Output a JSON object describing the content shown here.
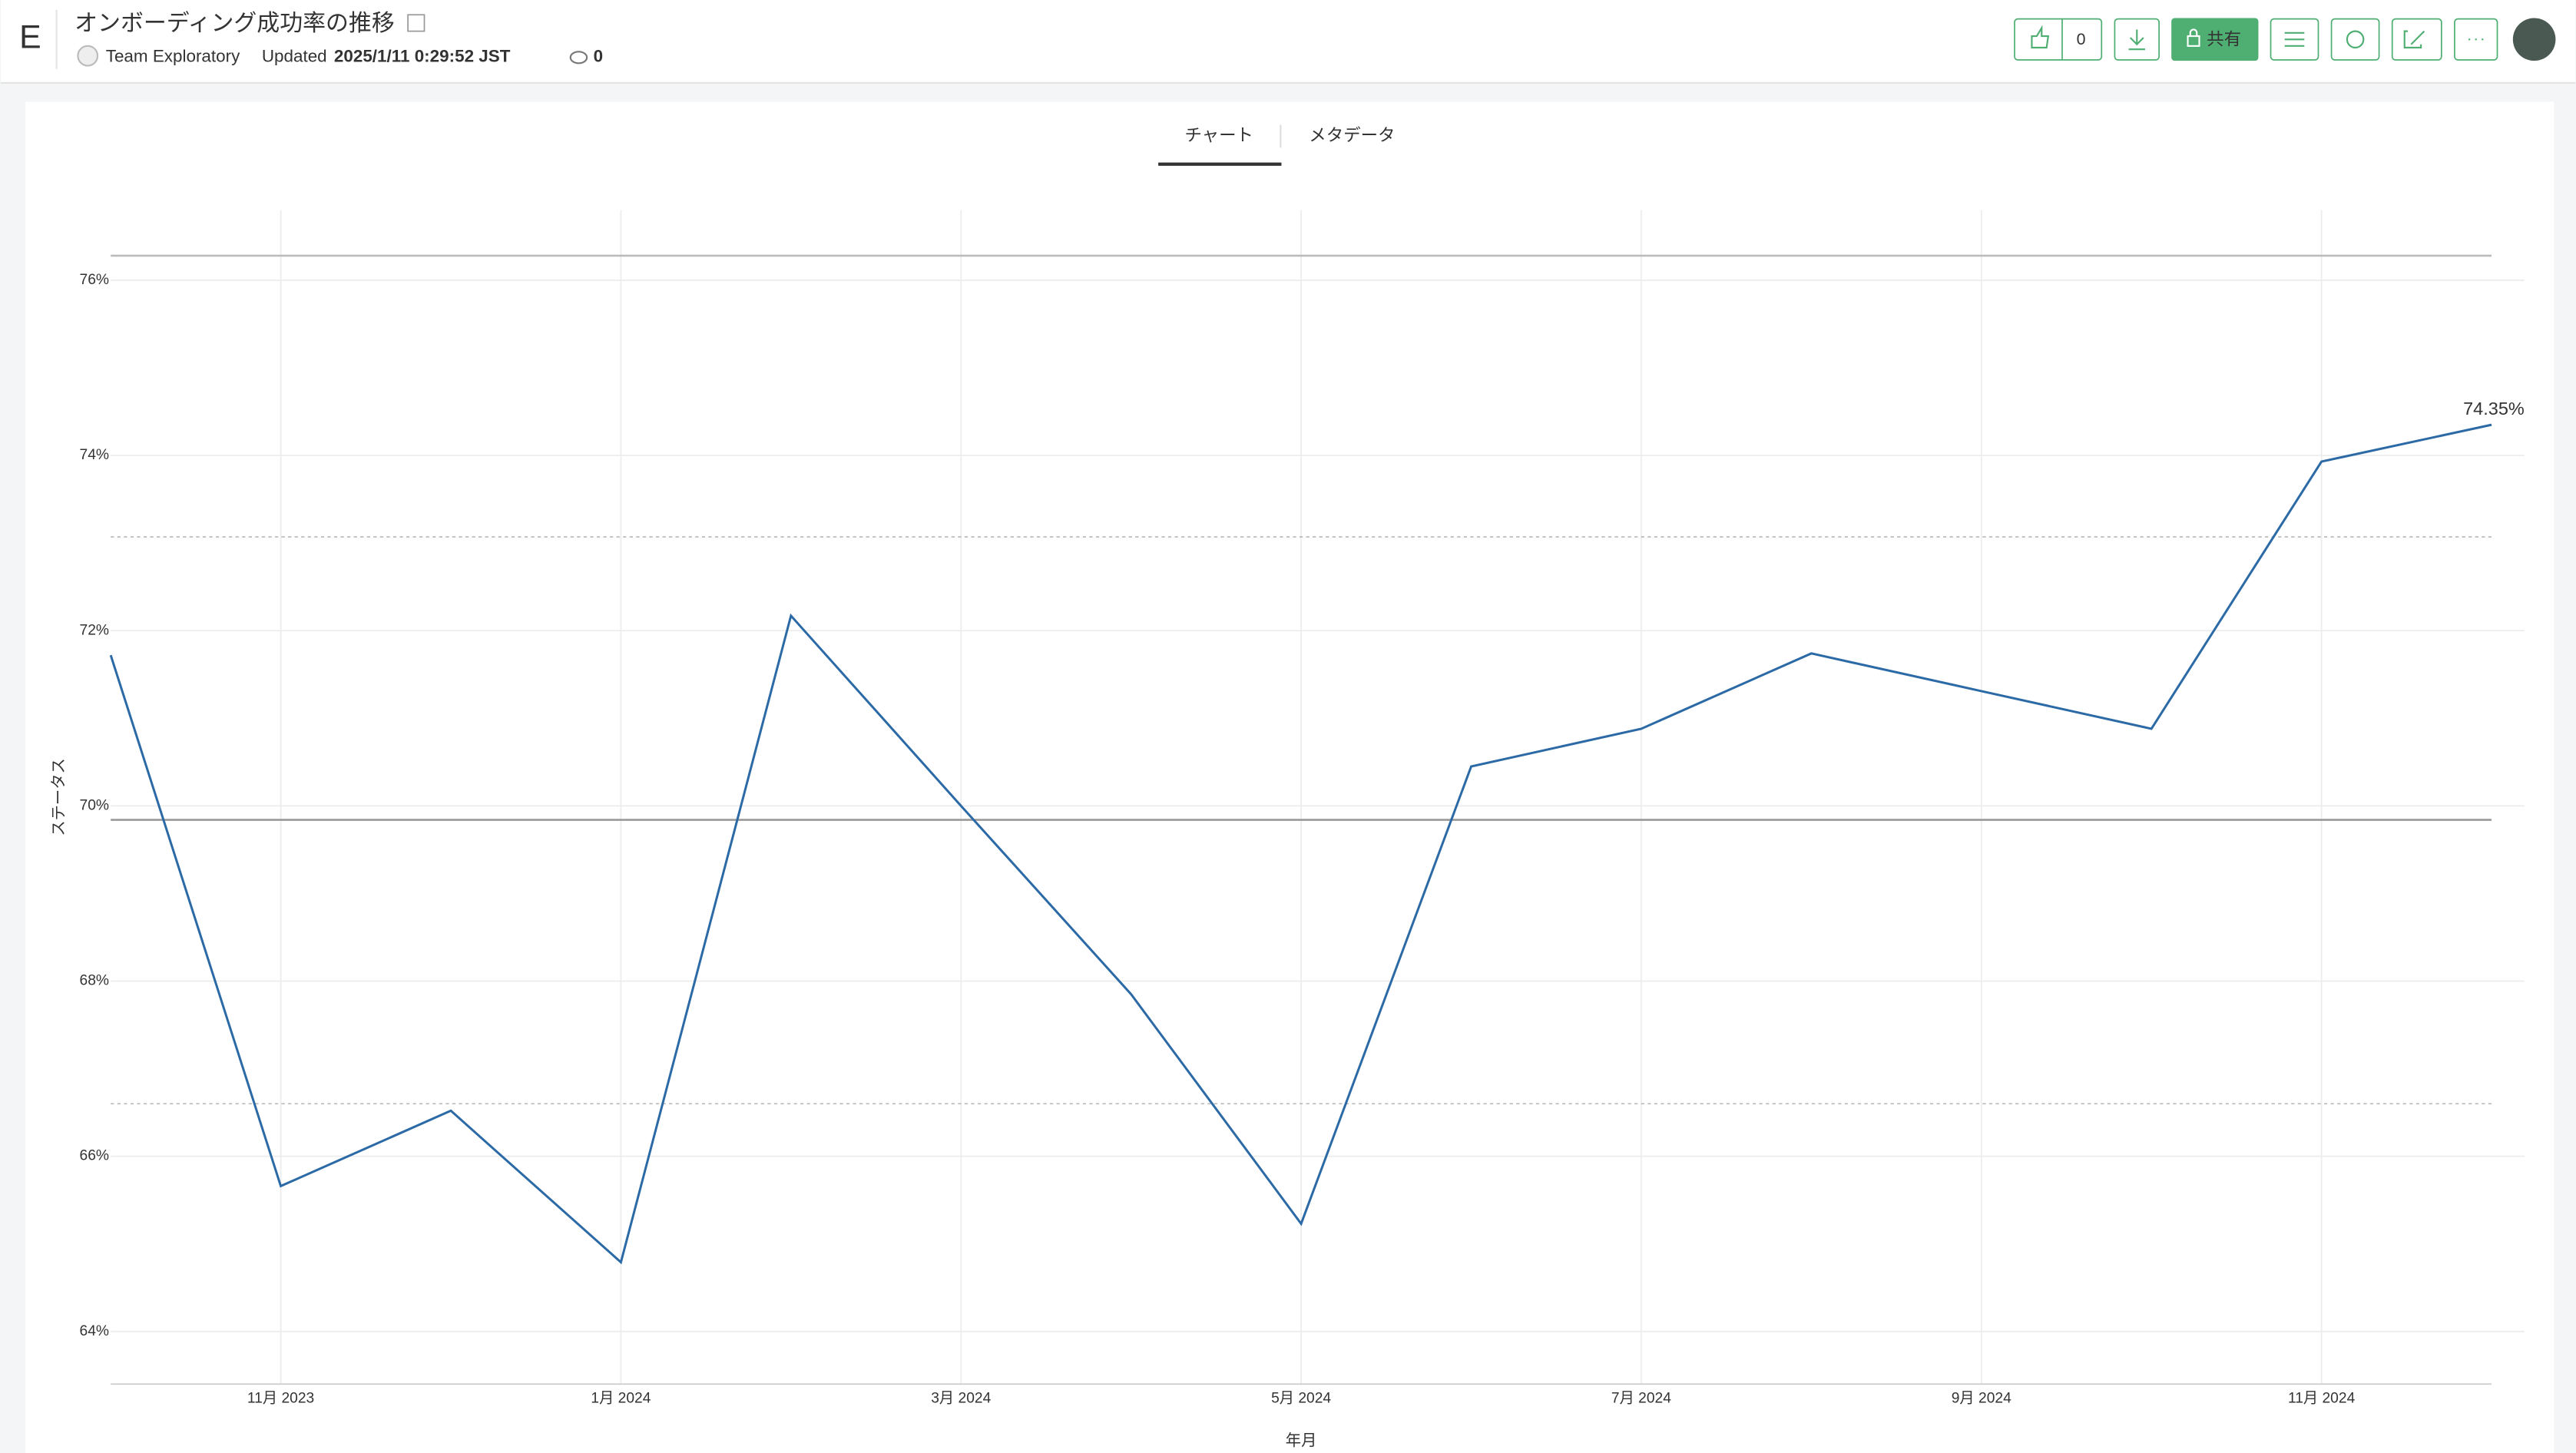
{
  "header": {
    "logo": "E",
    "title": "オンボーディング成功率の推移",
    "team": "Team Exploratory",
    "updated_label": "Updated",
    "updated": "2025/1/11 0:29:52 JST",
    "views": "0",
    "likes": "0",
    "share": "共有"
  },
  "tabs": [
    "チャート",
    "メタデータ"
  ],
  "chart_data": {
    "type": "line",
    "x_label": "年月",
    "y_label": "ステータス",
    "x": [
      "2023-10",
      "2023-11",
      "2023-12",
      "2024-01",
      "2024-02",
      "2024-03",
      "2024-04",
      "2024-05",
      "2024-06",
      "2024-07",
      "2024-08",
      "2024-09",
      "2024-10",
      "2024-11",
      "2024-12"
    ],
    "series": [
      {
        "name": "ステータス",
        "color": "#2c6aa6",
        "values": [
          71.72,
          65.66,
          66.52,
          64.79,
          72.17,
          70.0,
          67.85,
          65.23,
          70.45,
          70.88,
          71.74,
          71.31,
          70.88,
          73.93,
          74.35
        ],
        "value_labels": [
          null,
          null,
          null,
          null,
          null,
          null,
          null,
          null,
          null,
          null,
          null,
          null,
          null,
          null,
          "74.35%"
        ]
      }
    ],
    "reference_lines": [
      {
        "value": 76.28,
        "style": "solid"
      },
      {
        "value": 73.07,
        "style": "dotted"
      },
      {
        "value": 69.84,
        "style": "solid"
      },
      {
        "value": 66.6,
        "style": "dotted"
      }
    ],
    "xlim": [
      "2023-10",
      "2024-12"
    ],
    "xticks": [
      {
        "value": "2023-11",
        "label": "11月 2023"
      },
      {
        "value": "2024-01",
        "label": "1月 2024"
      },
      {
        "value": "2024-03",
        "label": "3月 2024"
      },
      {
        "value": "2024-05",
        "label": "5月 2024"
      },
      {
        "value": "2024-07",
        "label": "7月 2024"
      },
      {
        "value": "2024-09",
        "label": "9月 2024"
      },
      {
        "value": "2024-11",
        "label": "11月 2024"
      }
    ],
    "ylim": [
      63.4,
      76.8
    ],
    "yticks": [
      {
        "value": 64,
        "label": "64%"
      },
      {
        "value": 66,
        "label": "66%"
      },
      {
        "value": 68,
        "label": "68%"
      },
      {
        "value": 70,
        "label": "70%"
      },
      {
        "value": 72,
        "label": "72%"
      },
      {
        "value": 74,
        "label": "74%"
      },
      {
        "value": 76,
        "label": "76%"
      }
    ],
    "grid": true
  }
}
